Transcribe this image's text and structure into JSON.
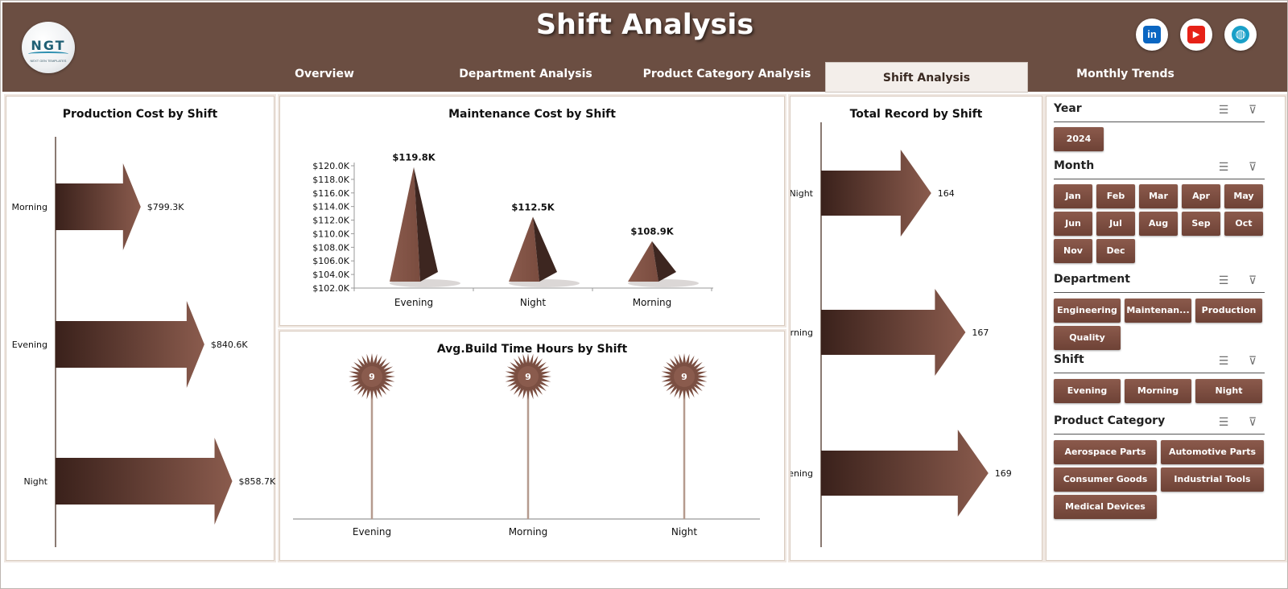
{
  "header": {
    "title": "Shift Analysis",
    "logo": {
      "text": "NGT",
      "subtext": "NEXT GEN TEMPLATES"
    },
    "social": [
      {
        "name": "linkedin-icon",
        "glyph": "in",
        "color": "#0a66c2"
      },
      {
        "name": "youtube-icon",
        "glyph": "▶",
        "color": "#e62117"
      },
      {
        "name": "website-icon",
        "glyph": "◍",
        "color": "#1aa0c8"
      }
    ]
  },
  "nav": {
    "tabs": [
      {
        "label": "Overview",
        "active": false
      },
      {
        "label": "Department Analysis",
        "active": false
      },
      {
        "label": "Product Category Analysis",
        "active": false
      },
      {
        "label": "Shift Analysis",
        "active": true
      },
      {
        "label": "Monthly Trends",
        "active": false
      }
    ]
  },
  "colors": {
    "header": "#6b4e42",
    "accent": "#7b4f42",
    "dark": "#3d2620"
  },
  "chart_data": [
    {
      "type": "bar",
      "title": "Production Cost by Shift",
      "categories": [
        "Morning",
        "Evening",
        "Night"
      ],
      "values": [
        799.3,
        840.6,
        858.7
      ],
      "value_labels": [
        "$799.3K",
        "$840.6K",
        "$858.7K"
      ],
      "orientation": "horizontal"
    },
    {
      "type": "bar",
      "title": "Maintenance Cost by Shift",
      "categories": [
        "Evening",
        "Night",
        "Morning"
      ],
      "values": [
        119.8,
        112.5,
        108.9
      ],
      "value_labels": [
        "$119.8K",
        "$112.5K",
        "$108.9K"
      ],
      "ylim": [
        102,
        120
      ],
      "yticks": [
        "$102.0K",
        "$104.0K",
        "$106.0K",
        "$108.0K",
        "$110.0K",
        "$112.0K",
        "$114.0K",
        "$116.0K",
        "$118.0K",
        "$120.0K"
      ]
    },
    {
      "type": "bar",
      "title": "Avg.Build Time Hours by Shift",
      "categories": [
        "Evening",
        "Morning",
        "Night"
      ],
      "values": [
        9,
        9,
        9
      ],
      "value_labels": [
        "9",
        "9",
        "9"
      ]
    },
    {
      "type": "bar",
      "title": "Total Record by Shift",
      "categories": [
        "Night",
        "Morning",
        "Evening"
      ],
      "values": [
        164,
        167,
        169
      ],
      "value_labels": [
        "164",
        "167",
        "169"
      ],
      "orientation": "horizontal"
    }
  ],
  "slicers": {
    "year": {
      "title": "Year",
      "items": [
        "2024"
      ]
    },
    "month": {
      "title": "Month",
      "items": [
        "Jan",
        "Feb",
        "Mar",
        "Apr",
        "May",
        "Jun",
        "Jul",
        "Aug",
        "Sep",
        "Oct",
        "Nov",
        "Dec"
      ]
    },
    "department": {
      "title": "Department",
      "items": [
        "Engineering",
        "Maintenan...",
        "Production",
        "Quality"
      ]
    },
    "shift": {
      "title": "Shift",
      "items": [
        "Evening",
        "Morning",
        "Night"
      ]
    },
    "product_category": {
      "title": "Product Category",
      "items": [
        "Aerospace Parts",
        "Automotive Parts",
        "Consumer Goods",
        "Industrial Tools",
        "Medical Devices"
      ]
    }
  }
}
